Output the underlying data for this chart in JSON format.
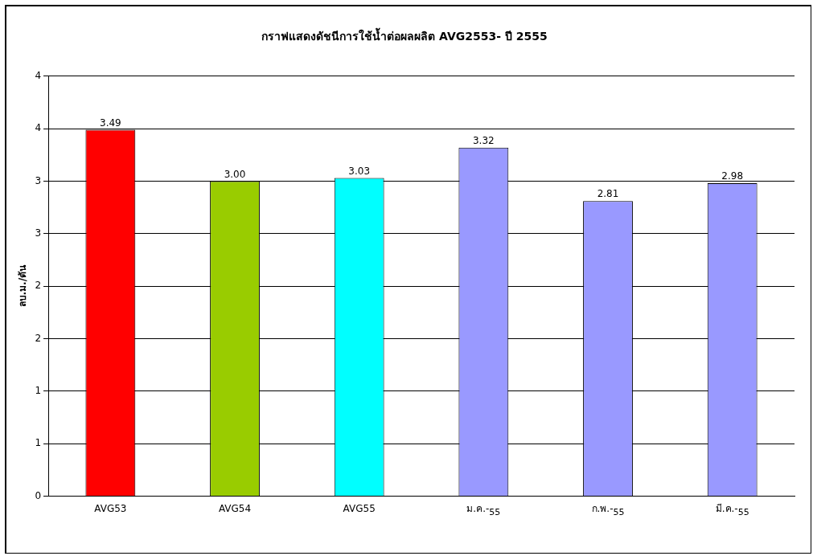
{
  "chart_data": {
    "type": "bar",
    "title": "กราฟแสดงดัชนีการใช้น้ำต่อผลผลิต AVG2553- ปี 2555",
    "ylabel": "ลบ.ม./ตัน",
    "categories": [
      "AVG53",
      "AVG54",
      "AVG55",
      "ม.ค.-$_{55}$",
      "ก.พ.-$_{55}$",
      "มี.ค.-$_{55}$"
    ],
    "values": [
      3.49,
      3.0,
      3.03,
      3.32,
      2.81,
      2.98
    ],
    "colors": [
      "#ff0000",
      "#99cc00",
      "#00ffff",
      "#9999ff",
      "#9999ff",
      "#9999ff"
    ],
    "value_labels": [
      "3.49",
      "3.00",
      "3.03",
      "3.32",
      "2.81",
      "2.98"
    ],
    "ylim": [
      0,
      4
    ],
    "yticks": [
      0,
      {
        "value": 0.5,
        "label": "1"
      },
      {
        "value": 1,
        "label": "1"
      },
      {
        "value": 1.5,
        "label": "2"
      },
      {
        "value": 2,
        "label": "2"
      },
      {
        "value": 2.5,
        "label": "3"
      },
      {
        "value": 3,
        "label": "3"
      },
      {
        "value": 3.5,
        "label": "4"
      },
      {
        "value": 4,
        "label": "4"
      }
    ],
    "grid": "y",
    "legend": false
  }
}
